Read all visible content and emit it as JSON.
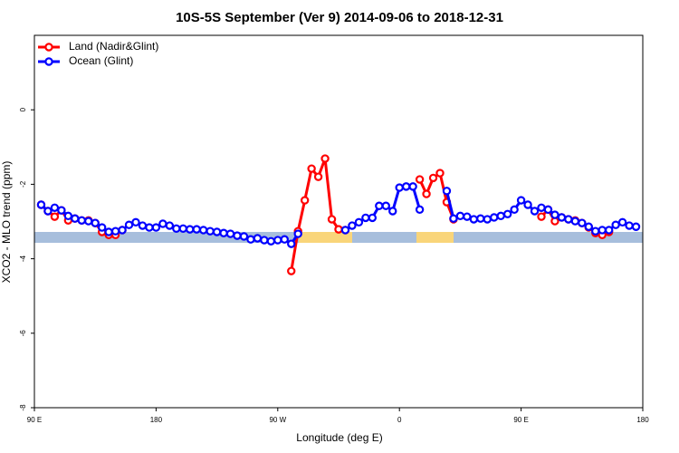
{
  "chart_data": {
    "type": "line",
    "title": "10S-5S September (Ver 9)   2014-09-06 to 2018-12-31",
    "x_label": "Longitude (deg E)",
    "y_label": "XCO2 - MLO trend (ppm)",
    "xlim": [
      90,
      540
    ],
    "ylim": [
      -8,
      2
    ],
    "xticks": [
      {
        "value": 90,
        "label": "90 E"
      },
      {
        "value": 180,
        "label": "180"
      },
      {
        "value": 270,
        "label": "90 W"
      },
      {
        "value": 360,
        "label": "0"
      },
      {
        "value": 450,
        "label": "90 E"
      },
      {
        "value": 540,
        "label": "180"
      }
    ],
    "yticks": [
      -8,
      -6,
      -4,
      -2,
      0
    ],
    "legend": "top-left",
    "x": [
      95,
      100,
      105,
      110,
      115,
      120,
      125,
      130,
      135,
      140,
      145,
      150,
      155,
      160,
      165,
      170,
      175,
      180,
      185,
      190,
      195,
      200,
      205,
      210,
      215,
      220,
      225,
      230,
      235,
      240,
      245,
      250,
      255,
      260,
      265,
      270,
      275,
      280,
      285,
      290,
      295,
      300,
      305,
      310,
      315,
      320,
      325,
      330,
      335,
      340,
      345,
      350,
      355,
      360,
      365,
      370,
      375,
      380,
      385,
      390,
      395,
      400,
      405,
      410,
      415,
      420,
      425,
      430,
      435,
      440,
      445,
      450,
      455,
      460,
      465,
      470,
      475,
      480,
      485,
      490,
      495,
      500,
      505,
      510,
      515,
      520,
      525,
      530,
      535
    ],
    "series": [
      {
        "name": "Land (Nadir&Glint)",
        "color": "#ff0000",
        "values": [
          -2.55,
          -2.72,
          -2.87,
          -2.7,
          -2.97,
          -2.92,
          -2.97,
          -2.97,
          -3.04,
          -3.28,
          -3.36,
          -3.36,
          -3.23,
          null,
          null,
          null,
          null,
          null,
          null,
          null,
          null,
          null,
          null,
          null,
          null,
          null,
          null,
          null,
          null,
          null,
          null,
          null,
          null,
          null,
          null,
          null,
          null,
          -4.33,
          -3.26,
          -2.43,
          -1.58,
          -1.8,
          -1.31,
          -2.94,
          -3.21,
          -3.23,
          null,
          null,
          null,
          null,
          null,
          null,
          null,
          null,
          null,
          null,
          -1.87,
          -2.26,
          -1.83,
          -1.7,
          -2.48,
          -2.94,
          null,
          null,
          null,
          null,
          null,
          null,
          null,
          null,
          null,
          null,
          null,
          null,
          -2.87,
          -2.68,
          -2.99,
          -2.89,
          -2.94,
          -2.97,
          -3.04,
          -3.16,
          -3.31,
          -3.36,
          -3.28,
          null,
          null,
          null,
          null
        ]
      },
      {
        "name": "Ocean (Glint)",
        "color": "#0000ff",
        "values": [
          -2.55,
          -2.72,
          -2.63,
          -2.7,
          -2.85,
          -2.92,
          -2.97,
          -2.99,
          -3.04,
          -3.16,
          -3.28,
          -3.26,
          -3.23,
          -3.09,
          -3.02,
          -3.11,
          -3.16,
          -3.16,
          -3.06,
          -3.11,
          -3.19,
          -3.19,
          -3.21,
          -3.21,
          -3.23,
          -3.26,
          -3.28,
          -3.31,
          -3.33,
          -3.38,
          -3.4,
          -3.48,
          -3.45,
          -3.5,
          -3.53,
          -3.5,
          -3.48,
          -3.6,
          -3.33,
          null,
          null,
          null,
          null,
          null,
          null,
          -3.23,
          -3.11,
          -3.02,
          -2.9,
          -2.9,
          -2.58,
          -2.58,
          -2.72,
          -2.09,
          -2.06,
          -2.06,
          -2.68,
          null,
          null,
          null,
          -2.18,
          -2.92,
          -2.85,
          -2.87,
          -2.94,
          -2.92,
          -2.94,
          -2.89,
          -2.85,
          -2.8,
          -2.68,
          -2.43,
          -2.55,
          -2.72,
          -2.63,
          -2.68,
          -2.82,
          -2.89,
          -2.94,
          -2.99,
          -3.04,
          -3.14,
          -3.26,
          -3.23,
          -3.23,
          -3.09,
          -3.02,
          -3.11,
          -3.14
        ]
      }
    ]
  }
}
